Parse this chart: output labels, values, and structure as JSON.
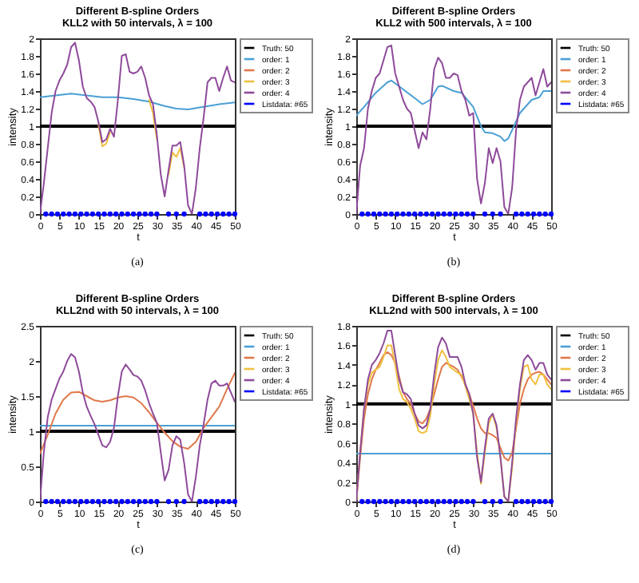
{
  "chart_data": [
    {
      "type": "line",
      "title": "Different B-spline Orders",
      "subtitle": "KLL2 with 50 intervals, λ = 100",
      "xlabel": "t",
      "ylabel": "intensity",
      "xlim": [
        0,
        50
      ],
      "xticks": [
        0,
        5,
        10,
        15,
        20,
        25,
        30,
        35,
        40,
        45,
        50
      ],
      "ylim": [
        0,
        2
      ],
      "yticks": [
        0,
        0.2,
        0.4,
        0.6,
        0.8,
        1,
        1.2,
        1.4,
        1.6,
        1.8,
        2
      ],
      "legend": "right",
      "annotations": [
        "(a)"
      ],
      "x": [
        0,
        1,
        2,
        3,
        4,
        5,
        6,
        7,
        8,
        9,
        10,
        11,
        12,
        13,
        14,
        15,
        16,
        17,
        18,
        19,
        20,
        21,
        22,
        23,
        24,
        25,
        26,
        27,
        28,
        29,
        30,
        31,
        32,
        33,
        34,
        35,
        36,
        37,
        38,
        39,
        40,
        41,
        42,
        43,
        44,
        45,
        46,
        47,
        48,
        49,
        50
      ],
      "series": [
        {
          "name": "Truth: 50",
          "color": "#000000",
          "x": [
            0,
            50
          ],
          "values": [
            1,
            1
          ]
        },
        {
          "name": "order: 1",
          "color": "#4a9fd4",
          "x": [
            0,
            4,
            8,
            12,
            16,
            20,
            24,
            28,
            32,
            35,
            38,
            42,
            46,
            50
          ],
          "values": [
            1.33,
            1.35,
            1.37,
            1.35,
            1.33,
            1.33,
            1.31,
            1.28,
            1.23,
            1.2,
            1.19,
            1.22,
            1.25,
            1.27
          ]
        },
        {
          "name": "order: 2",
          "color": "#e0784a",
          "values": [
            null,
            null,
            null,
            null,
            null,
            null,
            null,
            null,
            null,
            null,
            null,
            null,
            null,
            null,
            null,
            null,
            null,
            null,
            null,
            null,
            null,
            null,
            null,
            null,
            null,
            null,
            null,
            null,
            null,
            null,
            null,
            null,
            null,
            null,
            null,
            null,
            null,
            null,
            null,
            null,
            null,
            null,
            null,
            null,
            null,
            null,
            null,
            null,
            null,
            null,
            null
          ]
        },
        {
          "name": "order: 3",
          "color": "#f0c040",
          "x": [
            15,
            16,
            17,
            18,
            19,
            20,
            21,
            22,
            23,
            24,
            25,
            26,
            27,
            28,
            29,
            30,
            31,
            32,
            33,
            34,
            35,
            36,
            37
          ],
          "values": [
            1.02,
            0.77,
            0.8,
            0.93,
            null,
            null,
            null,
            null,
            null,
            null,
            null,
            null,
            null,
            1.3,
            1.15,
            0.85,
            null,
            null,
            0.45,
            0.7,
            0.65,
            0.75,
            0.53
          ]
        },
        {
          "name": "order: 4",
          "color": "#8e4a9a",
          "values": [
            0,
            0.35,
            0.75,
            1.15,
            1.4,
            1.52,
            1.6,
            1.7,
            1.9,
            1.95,
            1.75,
            1.45,
            1.32,
            1.28,
            1.22,
            1.05,
            0.82,
            0.85,
            0.97,
            0.88,
            1.3,
            1.8,
            1.82,
            1.62,
            1.6,
            1.62,
            1.68,
            1.55,
            1.35,
            1.25,
            0.9,
            0.45,
            0.2,
            0.5,
            0.78,
            0.78,
            0.82,
            0.55,
            0.1,
            0,
            0.3,
            0.75,
            1.1,
            1.5,
            1.55,
            1.55,
            1.4,
            1.55,
            1.68,
            1.52,
            1.5
          ]
        },
        {
          "name": "Listdata: #65",
          "type": "scatter",
          "color": "#0000ff",
          "x": [
            1.5,
            3,
            4.5,
            6,
            7.5,
            9,
            10.5,
            12,
            13.5,
            15,
            16.5,
            18,
            19.5,
            21,
            22.5,
            24,
            25.5,
            27,
            28.5,
            30,
            33,
            35,
            37,
            41,
            42.5,
            44,
            45.5,
            47,
            48.5,
            50
          ],
          "values": [
            0,
            0,
            0,
            0,
            0,
            0,
            0,
            0,
            0,
            0,
            0,
            0,
            0,
            0,
            0,
            0,
            0,
            0,
            0,
            0,
            0,
            0,
            0,
            0,
            0,
            0,
            0,
            0,
            0,
            0
          ]
        }
      ]
    },
    {
      "type": "line",
      "title": "Different B-spline Orders",
      "subtitle": "KLL2 with 500 intervals, λ = 100",
      "xlabel": "t",
      "ylabel": "intensity",
      "xlim": [
        0,
        50
      ],
      "xticks": [
        0,
        5,
        10,
        15,
        20,
        25,
        30,
        35,
        40,
        45,
        50
      ],
      "ylim": [
        0,
        2
      ],
      "yticks": [
        0,
        0.2,
        0.4,
        0.6,
        0.8,
        1,
        1.2,
        1.4,
        1.6,
        1.8,
        2
      ],
      "legend": "right",
      "annotations": [
        "(b)"
      ],
      "x": [
        0,
        1,
        2,
        3,
        4,
        5,
        6,
        7,
        8,
        9,
        10,
        11,
        12,
        13,
        14,
        15,
        16,
        17,
        18,
        19,
        20,
        21,
        22,
        23,
        24,
        25,
        26,
        27,
        28,
        29,
        30,
        31,
        32,
        33,
        34,
        35,
        36,
        37,
        38,
        39,
        40,
        41,
        42,
        43,
        44,
        45,
        46,
        47,
        48,
        49,
        50
      ],
      "series": [
        {
          "name": "Truth: 50",
          "color": "#000000",
          "x": [
            0,
            50
          ],
          "values": [
            1,
            1
          ]
        },
        {
          "name": "order: 1",
          "color": "#4a9fd4",
          "x": [
            0,
            2,
            5,
            8,
            9,
            12,
            15,
            17,
            19,
            21,
            22,
            25,
            27,
            30,
            32,
            33,
            35,
            37,
            38,
            39,
            42,
            45,
            47,
            48,
            50
          ],
          "values": [
            1.12,
            1.22,
            1.38,
            1.5,
            1.52,
            1.42,
            1.32,
            1.25,
            1.3,
            1.45,
            1.46,
            1.4,
            1.38,
            1.22,
            1.0,
            0.93,
            0.92,
            0.88,
            0.83,
            0.86,
            1.15,
            1.3,
            1.33,
            1.4,
            1.4
          ]
        },
        {
          "name": "order: 2",
          "color": "#e0784a",
          "values": [
            null,
            null,
            null,
            null,
            null,
            null,
            null,
            null,
            null,
            null,
            null,
            null,
            null,
            null,
            null,
            null,
            null,
            null,
            null,
            null,
            null,
            null,
            null,
            null,
            null,
            null,
            null,
            null,
            null,
            null,
            null,
            null,
            null,
            null,
            null,
            null,
            null,
            null,
            null,
            null,
            null,
            null,
            null,
            null,
            null,
            null,
            null,
            null,
            null,
            null,
            null
          ]
        },
        {
          "name": "order: 3",
          "color": "#f0c040",
          "values": [
            null,
            null,
            null,
            null,
            null,
            null,
            null,
            null,
            null,
            null,
            null,
            null,
            null,
            null,
            null,
            null,
            null,
            null,
            null,
            null,
            null,
            null,
            null,
            null,
            null,
            null,
            null,
            null,
            null,
            null,
            null,
            null,
            null,
            null,
            null,
            null,
            null,
            null,
            null,
            null,
            null,
            null,
            null,
            null,
            null,
            null,
            null,
            null,
            null,
            null,
            null
          ]
        },
        {
          "name": "order: 4",
          "color": "#8e4a9a",
          "values": [
            0,
            0.55,
            0.75,
            1.2,
            1.4,
            1.55,
            1.6,
            1.75,
            1.9,
            1.92,
            1.6,
            1.45,
            1.3,
            1.2,
            1.15,
            0.95,
            0.75,
            0.93,
            0.85,
            1.2,
            1.65,
            1.78,
            1.72,
            1.55,
            1.55,
            1.6,
            1.58,
            1.4,
            1.3,
            1.12,
            1.15,
            0.4,
            0.12,
            0.35,
            0.75,
            0.58,
            0.75,
            0.6,
            0.08,
            0,
            0.3,
            0.95,
            1.3,
            1.45,
            1.5,
            1.55,
            1.35,
            1.5,
            1.65,
            1.45,
            1.5
          ]
        },
        {
          "name": "Listdata: #65",
          "type": "scatter",
          "color": "#0000ff",
          "x": [
            1.5,
            3,
            4.5,
            6,
            7.5,
            9,
            10.5,
            12,
            13.5,
            15,
            16.5,
            18,
            19.5,
            21,
            22.5,
            24,
            25.5,
            27,
            28.5,
            30,
            33,
            35,
            37,
            41,
            42.5,
            44,
            45.5,
            47,
            48.5,
            50
          ],
          "values": [
            0,
            0,
            0,
            0,
            0,
            0,
            0,
            0,
            0,
            0,
            0,
            0,
            0,
            0,
            0,
            0,
            0,
            0,
            0,
            0,
            0,
            0,
            0,
            0,
            0,
            0,
            0,
            0,
            0,
            0
          ]
        }
      ]
    },
    {
      "type": "line",
      "title": "Different B-spline Orders",
      "subtitle": "KLL2nd with 50 intervals, λ = 100",
      "xlabel": "t",
      "ylabel": "intensity",
      "xlim": [
        0,
        50
      ],
      "xticks": [
        0,
        5,
        10,
        15,
        20,
        25,
        30,
        35,
        40,
        45,
        50
      ],
      "ylim": [
        0,
        2.5
      ],
      "yticks": [
        0,
        0.5,
        1,
        1.5,
        2,
        2.5
      ],
      "legend": "right",
      "annotations": [
        "(c)"
      ],
      "x": [
        0,
        1,
        2,
        3,
        4,
        5,
        6,
        7,
        8,
        9,
        10,
        11,
        12,
        13,
        14,
        15,
        16,
        17,
        18,
        19,
        20,
        21,
        22,
        23,
        24,
        25,
        26,
        27,
        28,
        29,
        30,
        31,
        32,
        33,
        34,
        35,
        36,
        37,
        38,
        39,
        40,
        41,
        42,
        43,
        44,
        45,
        46,
        47,
        48,
        49,
        50
      ],
      "series": [
        {
          "name": "Truth: 50",
          "color": "#000000",
          "x": [
            0,
            50
          ],
          "values": [
            1,
            1
          ]
        },
        {
          "name": "order: 1",
          "color": "#4a9fd4",
          "x": [
            0,
            50
          ],
          "values": [
            1.08,
            1.08
          ]
        },
        {
          "name": "order: 2",
          "color": "#e0784a",
          "x": [
            0,
            2,
            4,
            6,
            8,
            10,
            12,
            14,
            16,
            18,
            20,
            22,
            24,
            26,
            28,
            30,
            32,
            34,
            36,
            38,
            40,
            42,
            44,
            46,
            48,
            50
          ],
          "values": [
            0.68,
            0.95,
            1.25,
            1.45,
            1.55,
            1.56,
            1.5,
            1.44,
            1.42,
            1.44,
            1.48,
            1.5,
            1.48,
            1.4,
            1.27,
            1.12,
            0.98,
            0.86,
            0.78,
            0.75,
            0.85,
            1.05,
            1.2,
            1.35,
            1.6,
            1.83
          ]
        },
        {
          "name": "order: 3",
          "color": "#f0c040",
          "values": [
            null,
            null,
            null,
            null,
            null,
            null,
            null,
            null,
            null,
            null,
            null,
            null,
            null,
            null,
            null,
            null,
            null,
            null,
            null,
            null,
            null,
            null,
            null,
            null,
            null,
            null,
            null,
            null,
            null,
            null,
            null,
            null,
            null,
            null,
            null,
            null,
            null,
            null,
            null,
            null,
            null,
            null,
            null,
            null,
            null,
            null,
            null,
            null,
            null,
            null,
            null
          ]
        },
        {
          "name": "order: 4",
          "color": "#8e4a9a",
          "values": [
            0,
            0.7,
            1.2,
            1.45,
            1.6,
            1.75,
            1.85,
            2.0,
            2.1,
            2.05,
            1.85,
            1.55,
            1.35,
            1.22,
            1.1,
            0.95,
            0.8,
            0.77,
            0.85,
            1.05,
            1.5,
            1.85,
            1.95,
            1.88,
            1.8,
            1.78,
            1.72,
            1.58,
            1.4,
            1.25,
            1.12,
            0.7,
            0.3,
            0.45,
            0.8,
            0.93,
            0.88,
            0.55,
            0.1,
            0,
            0.35,
            0.8,
            1.1,
            1.45,
            1.68,
            1.72,
            1.65,
            1.65,
            1.68,
            1.55,
            1.42
          ]
        },
        {
          "name": "Listdata: #65",
          "type": "scatter",
          "color": "#0000ff",
          "x": [
            1.5,
            3,
            4.5,
            6,
            7.5,
            9,
            10.5,
            12,
            13.5,
            15,
            16.5,
            18,
            19.5,
            21,
            22.5,
            24,
            25.5,
            27,
            28.5,
            30,
            33,
            35,
            37,
            41,
            42.5,
            44,
            45.5,
            47,
            48.5,
            50
          ],
          "values": [
            0,
            0,
            0,
            0,
            0,
            0,
            0,
            0,
            0,
            0,
            0,
            0,
            0,
            0,
            0,
            0,
            0,
            0,
            0,
            0,
            0,
            0,
            0,
            0,
            0,
            0,
            0,
            0,
            0,
            0
          ]
        }
      ]
    },
    {
      "type": "line",
      "title": "Different B-spline Orders",
      "subtitle": "KLL2nd with 500 intervals, λ = 100",
      "xlabel": "t",
      "ylabel": "intensity",
      "xlim": [
        0,
        50
      ],
      "xticks": [
        0,
        5,
        10,
        15,
        20,
        25,
        30,
        35,
        40,
        45,
        50
      ],
      "ylim": [
        0,
        1.8
      ],
      "yticks": [
        0,
        0.2,
        0.4,
        0.6,
        0.8,
        1,
        1.2,
        1.4,
        1.6,
        1.8
      ],
      "legend": "right",
      "annotations": [
        "(d)"
      ],
      "x": [
        0,
        1,
        2,
        3,
        4,
        5,
        6,
        7,
        8,
        9,
        10,
        11,
        12,
        13,
        14,
        15,
        16,
        17,
        18,
        19,
        20,
        21,
        22,
        23,
        24,
        25,
        26,
        27,
        28,
        29,
        30,
        31,
        32,
        33,
        34,
        35,
        36,
        37,
        38,
        39,
        40,
        41,
        42,
        43,
        44,
        45,
        46,
        47,
        48,
        49,
        50
      ],
      "series": [
        {
          "name": "Truth: 50",
          "color": "#000000",
          "x": [
            0,
            50
          ],
          "values": [
            1,
            1
          ]
        },
        {
          "name": "order: 1",
          "color": "#4a9fd4",
          "x": [
            0,
            50
          ],
          "values": [
            0.49,
            0.49
          ]
        },
        {
          "name": "order: 2",
          "color": "#e0784a",
          "values": [
            0,
            0.45,
            0.85,
            1.1,
            1.25,
            1.35,
            1.42,
            1.5,
            1.53,
            1.5,
            1.42,
            1.28,
            1.12,
            1.05,
            1.0,
            0.9,
            0.82,
            0.8,
            0.85,
            0.95,
            1.1,
            1.25,
            1.38,
            1.42,
            1.4,
            1.38,
            1.35,
            1.28,
            1.2,
            1.1,
            0.98,
            0.85,
            0.75,
            0.7,
            0.7,
            0.68,
            0.65,
            0.55,
            0.45,
            0.42,
            0.5,
            0.75,
            1.0,
            1.15,
            1.25,
            1.3,
            1.32,
            1.33,
            1.3,
            1.25,
            1.2
          ]
        },
        {
          "name": "order: 3",
          "color": "#f0c040",
          "values": [
            0,
            0.5,
            0.95,
            1.2,
            1.32,
            1.35,
            1.38,
            1.48,
            1.6,
            1.6,
            1.4,
            1.15,
            1.05,
            1.02,
            0.95,
            0.85,
            0.72,
            0.7,
            0.72,
            0.88,
            1.2,
            1.45,
            1.55,
            1.48,
            1.38,
            1.35,
            1.32,
            1.3,
            1.18,
            1.05,
            0.9,
            0.5,
            0.18,
            0.5,
            0.8,
            0.9,
            0.75,
            0.45,
            0.05,
            0,
            0.35,
            0.8,
            1.15,
            1.38,
            1.4,
            1.25,
            1.2,
            1.3,
            1.3,
            1.2,
            1.15
          ]
        },
        {
          "name": "order: 4",
          "color": "#8e4a9a",
          "values": [
            0,
            0.5,
            0.95,
            1.25,
            1.4,
            1.45,
            1.52,
            1.62,
            1.75,
            1.75,
            1.5,
            1.25,
            1.12,
            1.1,
            1.05,
            0.9,
            0.78,
            0.75,
            0.78,
            0.95,
            1.3,
            1.58,
            1.68,
            1.62,
            1.48,
            1.48,
            1.48,
            1.38,
            1.2,
            1.1,
            0.9,
            0.45,
            0.2,
            0.55,
            0.85,
            0.9,
            0.78,
            0.45,
            0.05,
            0,
            0.4,
            0.85,
            1.2,
            1.45,
            1.5,
            1.45,
            1.35,
            1.42,
            1.42,
            1.3,
            1.25
          ]
        },
        {
          "name": "Listdata: #65",
          "type": "scatter",
          "color": "#0000ff",
          "x": [
            1.5,
            3,
            4.5,
            6,
            7.5,
            9,
            10.5,
            12,
            13.5,
            15,
            16.5,
            18,
            19.5,
            21,
            22.5,
            24,
            25.5,
            27,
            28.5,
            30,
            33,
            35,
            37,
            41,
            42.5,
            44,
            45.5,
            47,
            48.5,
            50
          ],
          "values": [
            0,
            0,
            0,
            0,
            0,
            0,
            0,
            0,
            0,
            0,
            0,
            0,
            0,
            0,
            0,
            0,
            0,
            0,
            0,
            0,
            0,
            0,
            0,
            0,
            0,
            0,
            0,
            0,
            0,
            0
          ]
        }
      ]
    }
  ]
}
